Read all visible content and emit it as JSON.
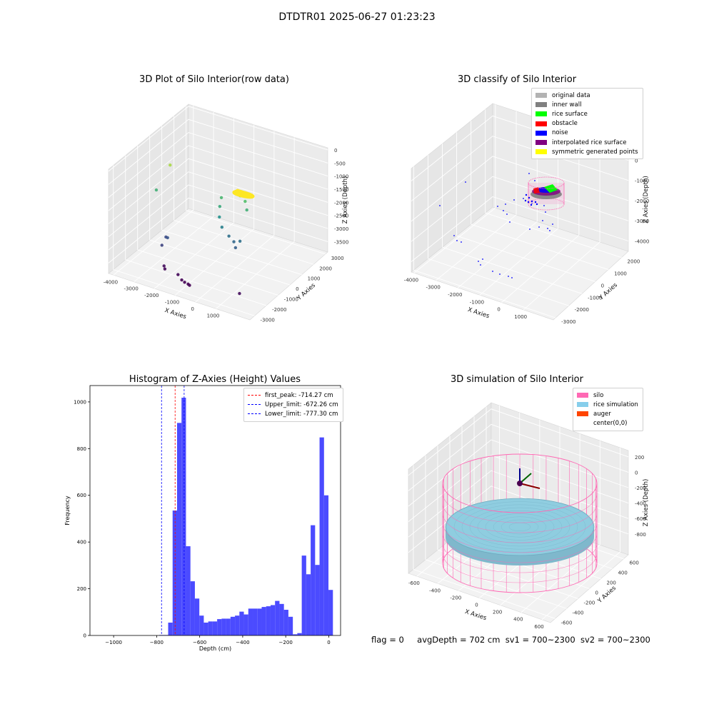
{
  "suptitle": "DTDTR01 2025-06-27 01:23:23",
  "footer": {
    "flag": "flag = 0",
    "avg": "avgDepth = 702 cm",
    "sv1": "sv1 = 700~2300",
    "sv2": "sv2 = 700~2300"
  },
  "chart_data": [
    {
      "type": "scatter",
      "title": "3D Plot of Silo Interior(row data)",
      "xlabel": "X Axies",
      "ylabel": "Y Axies",
      "zlabel": "Z Axies (Depth)",
      "xticks": [
        "-4000",
        "-3000",
        "-2000",
        "-1000",
        "0",
        "1000"
      ],
      "yticks": [
        "-3000",
        "-2000",
        "-1000",
        "0",
        "1000",
        "2000",
        "3000"
      ],
      "zticks": [
        "0",
        "-500",
        "-1000",
        "-1500",
        "-2000",
        "-2500",
        "-3000",
        "-3500"
      ],
      "colormap": "viridis",
      "surface_points": "dense ring of points at about x 0..400, y 0..400, z -700..-1200 (yellow-green)",
      "points": [
        {
          "x": -3600,
          "y": 600,
          "z": -1100
        },
        {
          "x": -3800,
          "y": -200,
          "z": -1800
        },
        {
          "x": -2600,
          "y": -1300,
          "z": -2900
        },
        {
          "x": -2800,
          "y": -1100,
          "z": -3000
        },
        {
          "x": -2700,
          "y": -1600,
          "z": -3100
        },
        {
          "x": -2300,
          "y": -2100,
          "z": -3600
        },
        {
          "x": -2200,
          "y": -2200,
          "z": -3650
        },
        {
          "x": -1500,
          "y": -2300,
          "z": -3650
        },
        {
          "x": -1200,
          "y": -2500,
          "z": -3700
        },
        {
          "x": -1000,
          "y": -2600,
          "z": -3700
        },
        {
          "x": -800,
          "y": -2650,
          "z": -3700
        },
        {
          "x": -700,
          "y": -2700,
          "z": -3700
        },
        {
          "x": 1500,
          "y": -2300,
          "z": -3600
        },
        {
          "x": -1100,
          "y": 600,
          "z": -1700
        },
        {
          "x": -1000,
          "y": 300,
          "z": -1900
        },
        {
          "x": -900,
          "y": 100,
          "z": -2200
        },
        {
          "x": -600,
          "y": -200,
          "z": -2400
        },
        {
          "x": -200,
          "y": -300,
          "z": -2600
        },
        {
          "x": 100,
          "y": -400,
          "z": -2700
        },
        {
          "x": 300,
          "y": -600,
          "z": -2800
        },
        {
          "x": 400,
          "y": -400,
          "z": -2600
        },
        {
          "x": -300,
          "y": 800,
          "z": -1500
        },
        {
          "x": 0,
          "y": 700,
          "z": -1600
        },
        {
          "x": 200,
          "y": 500,
          "z": -1800
        }
      ]
    },
    {
      "type": "scatter",
      "title": "3D classify of Silo Interior",
      "xlabel": "X Axies",
      "ylabel": "Y Axies",
      "zlabel": "Z Axies (Depth)",
      "xticks": [
        "-4000",
        "-3000",
        "-2000",
        "-1000",
        "0",
        "1000"
      ],
      "yticks": [
        "-3000",
        "-2000",
        "-1000",
        "0",
        "1000",
        "2000"
      ],
      "zticks": [
        "0",
        "-1000",
        "-2000",
        "-3000",
        "-4000"
      ],
      "legend_position": "top-right",
      "legend": [
        {
          "label": "original data",
          "color": "#b3b3b3"
        },
        {
          "label": "inner wall",
          "color": "#808080"
        },
        {
          "label": "rice surface",
          "color": "#00ff00"
        },
        {
          "label": "obstacle",
          "color": "#ff0000"
        },
        {
          "label": "noise",
          "color": "#0000ff"
        },
        {
          "label": "interpolated rice surface",
          "color": "#800080"
        },
        {
          "label": "symmetric generated points",
          "color": "#ffff00"
        }
      ]
    },
    {
      "type": "bar",
      "subtype": "histogram",
      "title": "Histogram of Z-Axies (Height) Values",
      "xlabel": "Depth (cm)",
      "ylabel": "Frequency",
      "xlim": [
        -1110,
        55
      ],
      "ylim": [
        0,
        1070
      ],
      "xticks": [
        -1000,
        -800,
        -600,
        -400,
        -200,
        0
      ],
      "yticks": [
        0,
        200,
        400,
        600,
        800,
        1000
      ],
      "bar_color": "#4b4bff",
      "bin_width": 20.7,
      "bin_start": -850,
      "counts": [
        0,
        0,
        0,
        2,
        2,
        55,
        535,
        910,
        1018,
        382,
        232,
        158,
        85,
        55,
        60,
        60,
        70,
        72,
        72,
        80,
        85,
        102,
        90,
        115,
        115,
        115,
        122,
        125,
        130,
        148,
        135,
        110,
        80,
        5,
        10,
        342,
        262,
        472,
        302,
        848,
        600,
        195
      ],
      "vlines": [
        {
          "label": "first_peak: -714.27 cm",
          "x": -714.27,
          "color": "#ff0000"
        },
        {
          "label": "Upper_limit: -672.26 cm",
          "x": -672.26,
          "color": "#0000ff"
        },
        {
          "label": "Lower_limit: -777.30 cm",
          "x": -777.3,
          "color": "#0000ff"
        }
      ]
    },
    {
      "type": "scatter",
      "title": "3D simulation of Silo Interior",
      "xlabel": "X Axies",
      "ylabel": "Y Axies",
      "zlabel": "Z Axies (Depth)",
      "xticks": [
        "-600",
        "-400",
        "-200",
        "0",
        "200",
        "400",
        "600"
      ],
      "yticks": [
        "-600",
        "-400",
        "-200",
        "0",
        "200",
        "400",
        "600"
      ],
      "zticks": [
        "200",
        "0",
        "-200",
        "-400",
        "-600",
        "-800"
      ],
      "legend_position": "top-right",
      "legend": [
        {
          "label": "silo",
          "color": "#ff69b4"
        },
        {
          "label": "rice simulation",
          "color": "#87ceeb"
        },
        {
          "label": "auger",
          "color": "#ff4500"
        },
        {
          "label": "center(0,0)",
          "color": "#ffffff"
        }
      ]
    }
  ]
}
